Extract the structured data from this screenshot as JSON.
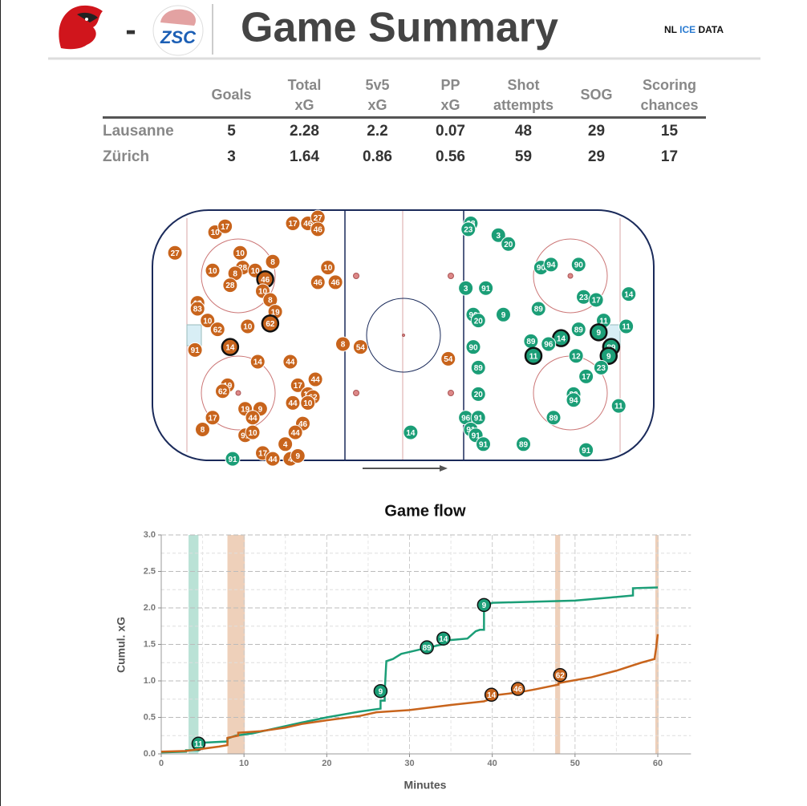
{
  "header": {
    "separator": "-",
    "away_logo_text": "ZSC",
    "title": "Game Summary",
    "brand": [
      "NL",
      "ICE",
      "DATA"
    ]
  },
  "table": {
    "columns": [
      "",
      "Goals",
      "Total\nxG",
      "5v5\nxG",
      "PP\nxG",
      "Shot\nattempts",
      "SOG",
      "Scoring\nchances"
    ],
    "rows": [
      [
        "Lausanne",
        5,
        2.28,
        2.2,
        0.07,
        48,
        29,
        15
      ],
      [
        "Zürich",
        3,
        1.64,
        0.86,
        0.56,
        59,
        29,
        17
      ]
    ]
  },
  "shot_map": {
    "xlim": [
      -100,
      100
    ],
    "ylim": [
      -42.5,
      42.5
    ],
    "teams": [
      {
        "color": "#c8641c",
        "shots": [
          {
            "x": -75,
            "y": 35,
            "label": "10"
          },
          {
            "x": -71,
            "y": 37,
            "label": "17"
          },
          {
            "x": -91,
            "y": 28,
            "label": "27"
          },
          {
            "x": -44,
            "y": 38,
            "label": "17"
          },
          {
            "x": -38,
            "y": 38,
            "label": "46"
          },
          {
            "x": -34,
            "y": 40,
            "label": "27"
          },
          {
            "x": -34,
            "y": 36,
            "label": "46"
          },
          {
            "x": -65,
            "y": 28,
            "label": "10"
          },
          {
            "x": -52,
            "y": 25,
            "label": "8"
          },
          {
            "x": -76,
            "y": 22,
            "label": "10"
          },
          {
            "x": -64,
            "y": 23,
            "label": "28"
          },
          {
            "x": -67,
            "y": 21,
            "label": "8"
          },
          {
            "x": -59,
            "y": 22,
            "label": "10"
          },
          {
            "x": -55,
            "y": 19,
            "label": "46",
            "goal": true
          },
          {
            "x": -69,
            "y": 17,
            "label": "28"
          },
          {
            "x": -56,
            "y": 15,
            "label": "10"
          },
          {
            "x": -53,
            "y": 12,
            "label": "8"
          },
          {
            "x": -51,
            "y": 8,
            "label": "19"
          },
          {
            "x": -82,
            "y": 11,
            "label": "13"
          },
          {
            "x": -82,
            "y": 9,
            "label": "83"
          },
          {
            "x": -30,
            "y": 23,
            "label": "10"
          },
          {
            "x": -34,
            "y": 18,
            "label": "46"
          },
          {
            "x": -27,
            "y": 18,
            "label": "46"
          },
          {
            "x": -78,
            "y": 5,
            "label": "10"
          },
          {
            "x": -74,
            "y": 2,
            "label": "62"
          },
          {
            "x": -62,
            "y": 3,
            "label": "10"
          },
          {
            "x": -53,
            "y": 4,
            "label": "62",
            "goal": true
          },
          {
            "x": -83,
            "y": -5,
            "label": "91"
          },
          {
            "x": -69,
            "y": -4,
            "label": "14",
            "goal": true
          },
          {
            "x": -58,
            "y": -9,
            "label": "14"
          },
          {
            "x": -45,
            "y": -9,
            "label": "44"
          },
          {
            "x": -24,
            "y": -3,
            "label": "8"
          },
          {
            "x": -17,
            "y": -4,
            "label": "54"
          },
          {
            "x": 18,
            "y": -8,
            "label": "54"
          },
          {
            "x": -35,
            "y": -15,
            "label": "44"
          },
          {
            "x": -42,
            "y": -17,
            "label": "17"
          },
          {
            "x": -38,
            "y": -20,
            "label": "17"
          },
          {
            "x": -36,
            "y": -21,
            "label": "62"
          },
          {
            "x": -38,
            "y": -23,
            "label": "10"
          },
          {
            "x": -44,
            "y": -23,
            "label": "44"
          },
          {
            "x": -70,
            "y": -17,
            "label": "19"
          },
          {
            "x": -72,
            "y": -19,
            "label": "62"
          },
          {
            "x": -63,
            "y": -25,
            "label": "19"
          },
          {
            "x": -57,
            "y": -25,
            "label": "9"
          },
          {
            "x": -60,
            "y": -28,
            "label": "44"
          },
          {
            "x": -76,
            "y": -28,
            "label": "17"
          },
          {
            "x": -40,
            "y": -30,
            "label": "46"
          },
          {
            "x": -43,
            "y": -33,
            "label": "44"
          },
          {
            "x": -80,
            "y": -32,
            "label": "8"
          },
          {
            "x": -63,
            "y": -34,
            "label": "91"
          },
          {
            "x": -60,
            "y": -33,
            "label": "10"
          },
          {
            "x": -47,
            "y": -37,
            "label": "4"
          },
          {
            "x": -56,
            "y": -40,
            "label": "17"
          },
          {
            "x": -52,
            "y": -42,
            "label": "44"
          },
          {
            "x": -45,
            "y": -42,
            "label": "4"
          },
          {
            "x": -42,
            "y": -41,
            "label": "9"
          }
        ]
      },
      {
        "color": "#1b9e77",
        "shots": [
          {
            "x": 27,
            "y": 38,
            "label": "38"
          },
          {
            "x": 26,
            "y": 36,
            "label": "23"
          },
          {
            "x": 38,
            "y": 34,
            "label": "3"
          },
          {
            "x": 42,
            "y": 31,
            "label": "20"
          },
          {
            "x": 55,
            "y": 23,
            "label": "90"
          },
          {
            "x": 59,
            "y": 24,
            "label": "94"
          },
          {
            "x": 70,
            "y": 24,
            "label": "90"
          },
          {
            "x": 25,
            "y": 16,
            "label": "3"
          },
          {
            "x": 33,
            "y": 16,
            "label": "91"
          },
          {
            "x": 28,
            "y": 7,
            "label": "90"
          },
          {
            "x": 30,
            "y": 5,
            "label": "20"
          },
          {
            "x": 40,
            "y": 7,
            "label": "9"
          },
          {
            "x": 54,
            "y": 9,
            "label": "89"
          },
          {
            "x": 72,
            "y": 13,
            "label": "23"
          },
          {
            "x": 77,
            "y": 12,
            "label": "17"
          },
          {
            "x": 90,
            "y": 14,
            "label": "14"
          },
          {
            "x": 80,
            "y": 5,
            "label": "11"
          },
          {
            "x": 89,
            "y": 3,
            "label": "11"
          },
          {
            "x": 78,
            "y": 1,
            "label": "9",
            "goal": true
          },
          {
            "x": 70,
            "y": 2,
            "label": "89"
          },
          {
            "x": 63,
            "y": -1,
            "label": "14",
            "goal": true
          },
          {
            "x": 58,
            "y": -3,
            "label": "96"
          },
          {
            "x": 51,
            "y": -2,
            "label": "89"
          },
          {
            "x": 52,
            "y": -7,
            "label": "11",
            "goal": true
          },
          {
            "x": 28,
            "y": -4,
            "label": "90"
          },
          {
            "x": 69,
            "y": -7,
            "label": "12"
          },
          {
            "x": 83,
            "y": -4,
            "label": "89",
            "goal": true
          },
          {
            "x": 82,
            "y": -7,
            "label": "9",
            "goal": true
          },
          {
            "x": 79,
            "y": -11,
            "label": "23"
          },
          {
            "x": 30,
            "y": -11,
            "label": "89"
          },
          {
            "x": 73,
            "y": -14,
            "label": "17"
          },
          {
            "x": 68,
            "y": -20,
            "label": "89"
          },
          {
            "x": 68,
            "y": -22,
            "label": "94"
          },
          {
            "x": 30,
            "y": -20,
            "label": "20"
          },
          {
            "x": 25,
            "y": -28,
            "label": "96"
          },
          {
            "x": 30,
            "y": -28,
            "label": "91"
          },
          {
            "x": 60,
            "y": -28,
            "label": "89"
          },
          {
            "x": 86,
            "y": -24,
            "label": "11"
          },
          {
            "x": 27,
            "y": -32,
            "label": "91"
          },
          {
            "x": 29,
            "y": -34,
            "label": "91"
          },
          {
            "x": 32,
            "y": -37,
            "label": "91"
          },
          {
            "x": 48,
            "y": -37,
            "label": "89"
          },
          {
            "x": 73,
            "y": -39,
            "label": "91"
          },
          {
            "x": 3,
            "y": -33,
            "label": "14"
          },
          {
            "x": -68,
            "y": -42,
            "label": "91"
          }
        ]
      }
    ]
  },
  "chart_data": {
    "type": "line",
    "title": "Game flow",
    "xlabel": "Minutes",
    "ylabel": "Cumul. xG",
    "xlim": [
      0,
      64
    ],
    "xticks": [
      0,
      10,
      20,
      30,
      40,
      50,
      60
    ],
    "ylim": [
      0,
      3
    ],
    "yticks": [
      {
        "value": 0,
        "label": "0.0"
      },
      {
        "value": 0.5,
        "label": "0.5"
      },
      {
        "value": 1,
        "label": "1.0"
      },
      {
        "value": 1.5,
        "label": "1.5"
      },
      {
        "value": 2,
        "label": "2.0"
      },
      {
        "value": 2.5,
        "label": "2.5"
      },
      {
        "value": 3,
        "label": "3.0"
      }
    ],
    "grid": true,
    "shaded": [
      {
        "start": 3.3,
        "end": 4.5,
        "color": "#1b9e77"
      },
      {
        "start": 8.0,
        "end": 10.1,
        "color": "#c8641c"
      },
      {
        "start": 47.6,
        "end": 48.2,
        "color": "#c8641c"
      },
      {
        "start": 59.7,
        "end": 60.1,
        "color": "#c8641c"
      }
    ],
    "series": [
      {
        "color": "#1b9e77",
        "x": [
          0,
          3,
          3,
          4.5,
          4.5,
          8,
          8,
          9,
          11,
          13,
          17,
          20,
          24,
          26.5,
          26.5,
          27,
          27,
          27.2,
          28,
          29,
          32,
          34,
          34,
          37,
          38,
          38.5,
          39,
          39,
          40,
          50,
          55,
          57,
          57,
          60
        ],
        "values": [
          0.02,
          0.03,
          0.05,
          0.05,
          0.15,
          0.17,
          0.21,
          0.25,
          0.28,
          0.33,
          0.43,
          0.5,
          0.58,
          0.62,
          0.73,
          0.73,
          0.85,
          1.27,
          1.3,
          1.37,
          1.45,
          1.5,
          1.55,
          1.58,
          1.68,
          1.7,
          1.7,
          2.02,
          2.07,
          2.1,
          2.15,
          2.17,
          2.27,
          2.28
        ],
        "goals": [
          {
            "x": 4.5,
            "y": 0.14,
            "label": "11"
          },
          {
            "x": 26.5,
            "y": 0.86,
            "label": "9"
          },
          {
            "x": 32.1,
            "y": 1.46,
            "label": "89"
          },
          {
            "x": 34.1,
            "y": 1.58,
            "label": "14"
          },
          {
            "x": 39,
            "y": 2.04,
            "label": "9"
          }
        ]
      },
      {
        "color": "#c8641c",
        "x": [
          0,
          3,
          7,
          8,
          8,
          9.3,
          9.3,
          12,
          15,
          17,
          20,
          24,
          26,
          30,
          35,
          39,
          40,
          40,
          43,
          45,
          48,
          48,
          52,
          55,
          58,
          59.6,
          59.8,
          59.9,
          60
        ],
        "values": [
          0.03,
          0.04,
          0.1,
          0.12,
          0.22,
          0.25,
          0.29,
          0.31,
          0.36,
          0.41,
          0.46,
          0.52,
          0.57,
          0.6,
          0.67,
          0.72,
          0.76,
          0.8,
          0.84,
          0.88,
          0.95,
          0.97,
          1.05,
          1.14,
          1.25,
          1.3,
          1.45,
          1.55,
          1.64
        ],
        "goals": [
          {
            "x": 39.9,
            "y": 0.81,
            "label": "14"
          },
          {
            "x": 43.1,
            "y": 0.89,
            "label": "46"
          },
          {
            "x": 48.2,
            "y": 1.08,
            "label": "62"
          }
        ]
      }
    ]
  }
}
